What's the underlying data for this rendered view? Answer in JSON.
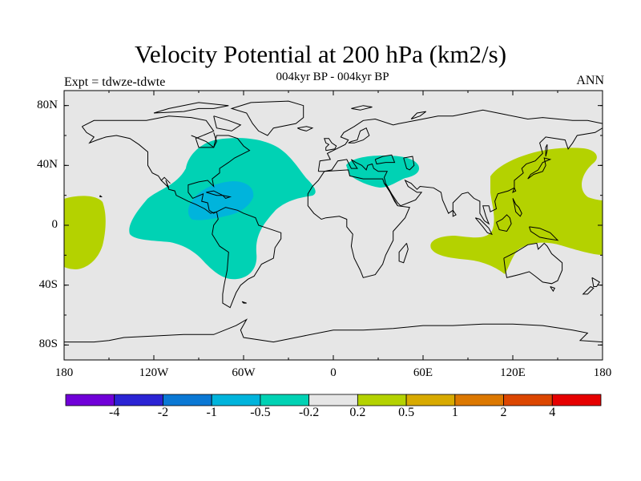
{
  "title": "Velocity Potential at 200 hPa (km2/s)",
  "subtitle": "004kyr BP - 004kyr BP",
  "left_label": "Expt = tdwze-tdwte",
  "right_label": "ANN",
  "lat_ticks": [
    "80N",
    "40N",
    "0",
    "40S",
    "80S"
  ],
  "lon_ticks": [
    "180",
    "120W",
    "60W",
    "0",
    "60E",
    "120E",
    "180"
  ],
  "colorbar": {
    "colors": [
      "#7000d8",
      "#2b24d4",
      "#0a78d4",
      "#00b4dc",
      "#00d2b4",
      "#e6e6e6",
      "#b4d200",
      "#d8aa00",
      "#dc7800",
      "#dc4600",
      "#e60000"
    ],
    "labels": [
      "-4",
      "-2",
      "-1",
      "-0.5",
      "-0.2",
      "0.2",
      "0.5",
      "1",
      "2",
      "4"
    ]
  },
  "colors": {
    "background": "#e6e6e6",
    "negative": "#00d2b4",
    "strong_negative": "#00b4dc",
    "positive": "#b4d200"
  }
}
